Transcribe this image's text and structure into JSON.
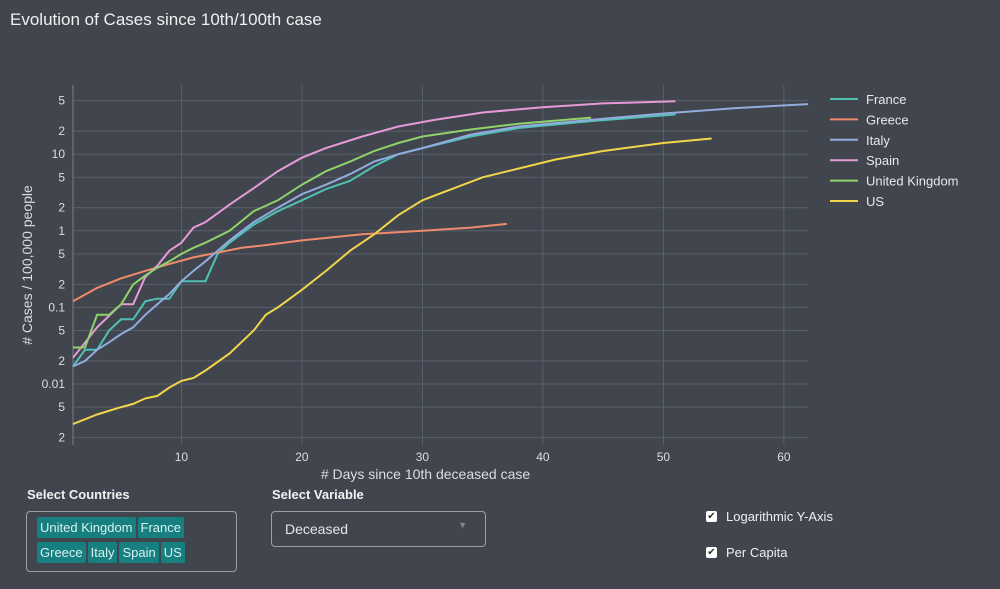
{
  "title": "Evolution of Cases since 10th/100th case",
  "chart_data": {
    "type": "line",
    "title": "Evolution of Cases since 10th/100th case",
    "xlabel": "# Days since 10th deceased case",
    "ylabel": "# Cases / 100,000 people",
    "xlim": [
      1,
      62
    ],
    "ylim": [
      0.0016,
      80
    ],
    "yscale": "log",
    "xticks": [
      10,
      20,
      30,
      40,
      50,
      60
    ],
    "yticks": [
      {
        "v": 0.002,
        "l": "2"
      },
      {
        "v": 0.005,
        "l": "5"
      },
      {
        "v": 0.01,
        "l": "0.01"
      },
      {
        "v": 0.02,
        "l": "2"
      },
      {
        "v": 0.05,
        "l": "5"
      },
      {
        "v": 0.1,
        "l": "0.1"
      },
      {
        "v": 0.2,
        "l": "2"
      },
      {
        "v": 0.5,
        "l": "5"
      },
      {
        "v": 1,
        "l": "1"
      },
      {
        "v": 2,
        "l": "2"
      },
      {
        "v": 5,
        "l": "5"
      },
      {
        "v": 10,
        "l": "10"
      },
      {
        "v": 20,
        "l": "2"
      },
      {
        "v": 50,
        "l": "5"
      }
    ],
    "grid": true,
    "legend": "right",
    "series": [
      {
        "name": "France",
        "color": "#4fc1b3",
        "points": [
          [
            1,
            0.017
          ],
          [
            2,
            0.028
          ],
          [
            3,
            0.028
          ],
          [
            4,
            0.05
          ],
          [
            5,
            0.07
          ],
          [
            6,
            0.07
          ],
          [
            7,
            0.12
          ],
          [
            8,
            0.13
          ],
          [
            9,
            0.13
          ],
          [
            10,
            0.22
          ],
          [
            11,
            0.22
          ],
          [
            12,
            0.22
          ],
          [
            13,
            0.5
          ],
          [
            14,
            0.7
          ],
          [
            16,
            1.2
          ],
          [
            18,
            1.8
          ],
          [
            20,
            2.5
          ],
          [
            22,
            3.5
          ],
          [
            24,
            4.5
          ],
          [
            26,
            7
          ],
          [
            28,
            10
          ],
          [
            30,
            12
          ],
          [
            34,
            17
          ],
          [
            38,
            22
          ],
          [
            44,
            27
          ],
          [
            51,
            33
          ]
        ]
      },
      {
        "name": "Greece",
        "color": "#ef8a6c",
        "points": [
          [
            1,
            0.12
          ],
          [
            3,
            0.18
          ],
          [
            5,
            0.24
          ],
          [
            7,
            0.3
          ],
          [
            9,
            0.37
          ],
          [
            11,
            0.45
          ],
          [
            13,
            0.52
          ],
          [
            15,
            0.6
          ],
          [
            17,
            0.65
          ],
          [
            20,
            0.75
          ],
          [
            25,
            0.9
          ],
          [
            30,
            1.0
          ],
          [
            34,
            1.1
          ],
          [
            37,
            1.23
          ]
        ]
      },
      {
        "name": "Italy",
        "color": "#93abdf",
        "points": [
          [
            1,
            0.017
          ],
          [
            2,
            0.02
          ],
          [
            3,
            0.028
          ],
          [
            4,
            0.035
          ],
          [
            5,
            0.045
          ],
          [
            6,
            0.055
          ],
          [
            7,
            0.08
          ],
          [
            8,
            0.11
          ],
          [
            9,
            0.15
          ],
          [
            10,
            0.22
          ],
          [
            11,
            0.3
          ],
          [
            12,
            0.4
          ],
          [
            14,
            0.75
          ],
          [
            16,
            1.3
          ],
          [
            18,
            2.0
          ],
          [
            20,
            3
          ],
          [
            22,
            4
          ],
          [
            24,
            5.5
          ],
          [
            26,
            8
          ],
          [
            28,
            10
          ],
          [
            30,
            12
          ],
          [
            34,
            18
          ],
          [
            38,
            23
          ],
          [
            44,
            28
          ],
          [
            50,
            34
          ],
          [
            56,
            40
          ],
          [
            62,
            45
          ]
        ]
      },
      {
        "name": "Spain",
        "color": "#e69bd7",
        "points": [
          [
            1,
            0.022
          ],
          [
            3,
            0.055
          ],
          [
            5,
            0.11
          ],
          [
            6,
            0.11
          ],
          [
            7,
            0.25
          ],
          [
            8,
            0.35
          ],
          [
            9,
            0.55
          ],
          [
            10,
            0.7
          ],
          [
            11,
            1.1
          ],
          [
            12,
            1.3
          ],
          [
            14,
            2.2
          ],
          [
            16,
            3.6
          ],
          [
            18,
            6
          ],
          [
            20,
            9
          ],
          [
            22,
            12
          ],
          [
            25,
            17
          ],
          [
            28,
            23
          ],
          [
            31,
            28
          ],
          [
            35,
            35
          ],
          [
            40,
            41
          ],
          [
            45,
            46
          ],
          [
            51,
            49
          ]
        ]
      },
      {
        "name": "United Kingdom",
        "color": "#8fd36a",
        "points": [
          [
            1,
            0.03
          ],
          [
            2,
            0.03
          ],
          [
            3,
            0.08
          ],
          [
            4,
            0.08
          ],
          [
            5,
            0.11
          ],
          [
            6,
            0.2
          ],
          [
            7,
            0.26
          ],
          [
            8,
            0.33
          ],
          [
            9,
            0.4
          ],
          [
            10,
            0.5
          ],
          [
            11,
            0.6
          ],
          [
            12,
            0.7
          ],
          [
            14,
            1.0
          ],
          [
            16,
            1.8
          ],
          [
            18,
            2.5
          ],
          [
            20,
            4
          ],
          [
            22,
            6
          ],
          [
            24,
            8
          ],
          [
            26,
            11
          ],
          [
            28,
            14
          ],
          [
            30,
            17
          ],
          [
            34,
            21
          ],
          [
            38,
            25
          ],
          [
            44,
            30
          ]
        ]
      },
      {
        "name": "US",
        "color": "#f3d54a",
        "points": [
          [
            1,
            0.003
          ],
          [
            3,
            0.004
          ],
          [
            5,
            0.005
          ],
          [
            6,
            0.0055
          ],
          [
            7,
            0.0065
          ],
          [
            8,
            0.007
          ],
          [
            9,
            0.009
          ],
          [
            10,
            0.011
          ],
          [
            11,
            0.012
          ],
          [
            12,
            0.015
          ],
          [
            14,
            0.025
          ],
          [
            16,
            0.05
          ],
          [
            17,
            0.08
          ],
          [
            18,
            0.1
          ],
          [
            20,
            0.17
          ],
          [
            22,
            0.3
          ],
          [
            24,
            0.55
          ],
          [
            26,
            0.9
          ],
          [
            28,
            1.6
          ],
          [
            30,
            2.5
          ],
          [
            32,
            3.3
          ],
          [
            35,
            5
          ],
          [
            38,
            6.5
          ],
          [
            41,
            8.5
          ],
          [
            45,
            11
          ],
          [
            50,
            14
          ],
          [
            54,
            16
          ]
        ]
      }
    ]
  },
  "controls": {
    "countries_label": "Select Countries",
    "countries": [
      "United Kingdom",
      "France",
      "Greece",
      "Italy",
      "Spain",
      "US"
    ],
    "variable_label": "Select Variable",
    "variable_value": "Deceased",
    "log_axis_label": "Logarithmic Y-Axis",
    "per_capita_label": "Per Capita"
  }
}
